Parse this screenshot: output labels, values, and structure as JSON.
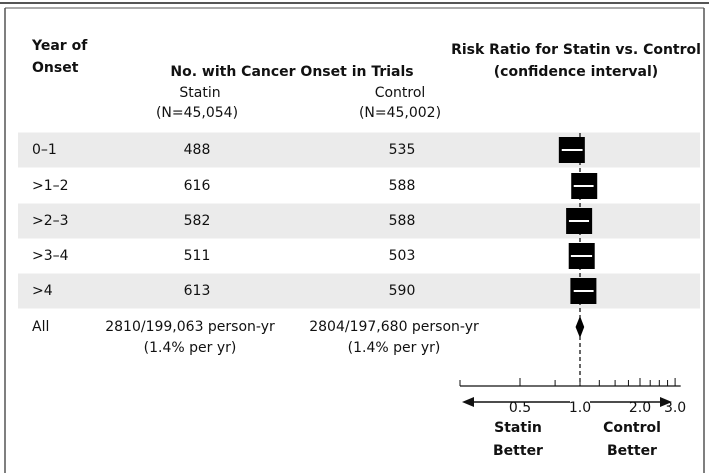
{
  "chart_data": {
    "type": "forest",
    "headers": {
      "year": [
        "Year of",
        "Onset"
      ],
      "counts": "No. with Cancer Onset in Trials",
      "statin": [
        "Statin",
        "(N=45,054)"
      ],
      "control": [
        "Control",
        "(N=45,002)"
      ],
      "ratio": [
        "Risk Ratio for Statin vs. Control",
        "(confidence interval)"
      ]
    },
    "categories": [
      "0–1",
      ">1–2",
      ">2–3",
      ">3–4",
      ">4",
      "All"
    ],
    "statin": [
      488,
      616,
      582,
      511,
      613,
      "2810/199,063 person-yr"
    ],
    "control": [
      535,
      588,
      588,
      503,
      590,
      "2804/197,680 person-yr"
    ],
    "all_rates": [
      "(1.4% per yr)",
      "(1.4% per yr)"
    ],
    "values": [
      0.91,
      1.05,
      0.99,
      1.02,
      1.04,
      1.0
    ],
    "ci_low": [
      0.81,
      0.93,
      0.88,
      0.9,
      0.93,
      0.95
    ],
    "ci_high": [
      1.03,
      1.17,
      1.11,
      1.15,
      1.17,
      1.05
    ],
    "log_x": true,
    "xlim": [
      0.25,
      3.2
    ],
    "xticks": [
      0.5,
      {
        "value": 1,
        "label": "1.0"
      },
      {
        "value": 2,
        "label": "2.0"
      },
      {
        "value": 3,
        "label": "3.0"
      }
    ],
    "xminorticks": [
      0.25,
      0.75,
      1.25,
      1.5,
      1.75,
      2.25,
      2.5,
      2.75
    ],
    "reference": 1,
    "favors": {
      "left": [
        "Statin",
        "Better"
      ],
      "right": [
        "Control",
        "Better"
      ]
    },
    "color": "#000000",
    "shade": "#ebebeb"
  }
}
